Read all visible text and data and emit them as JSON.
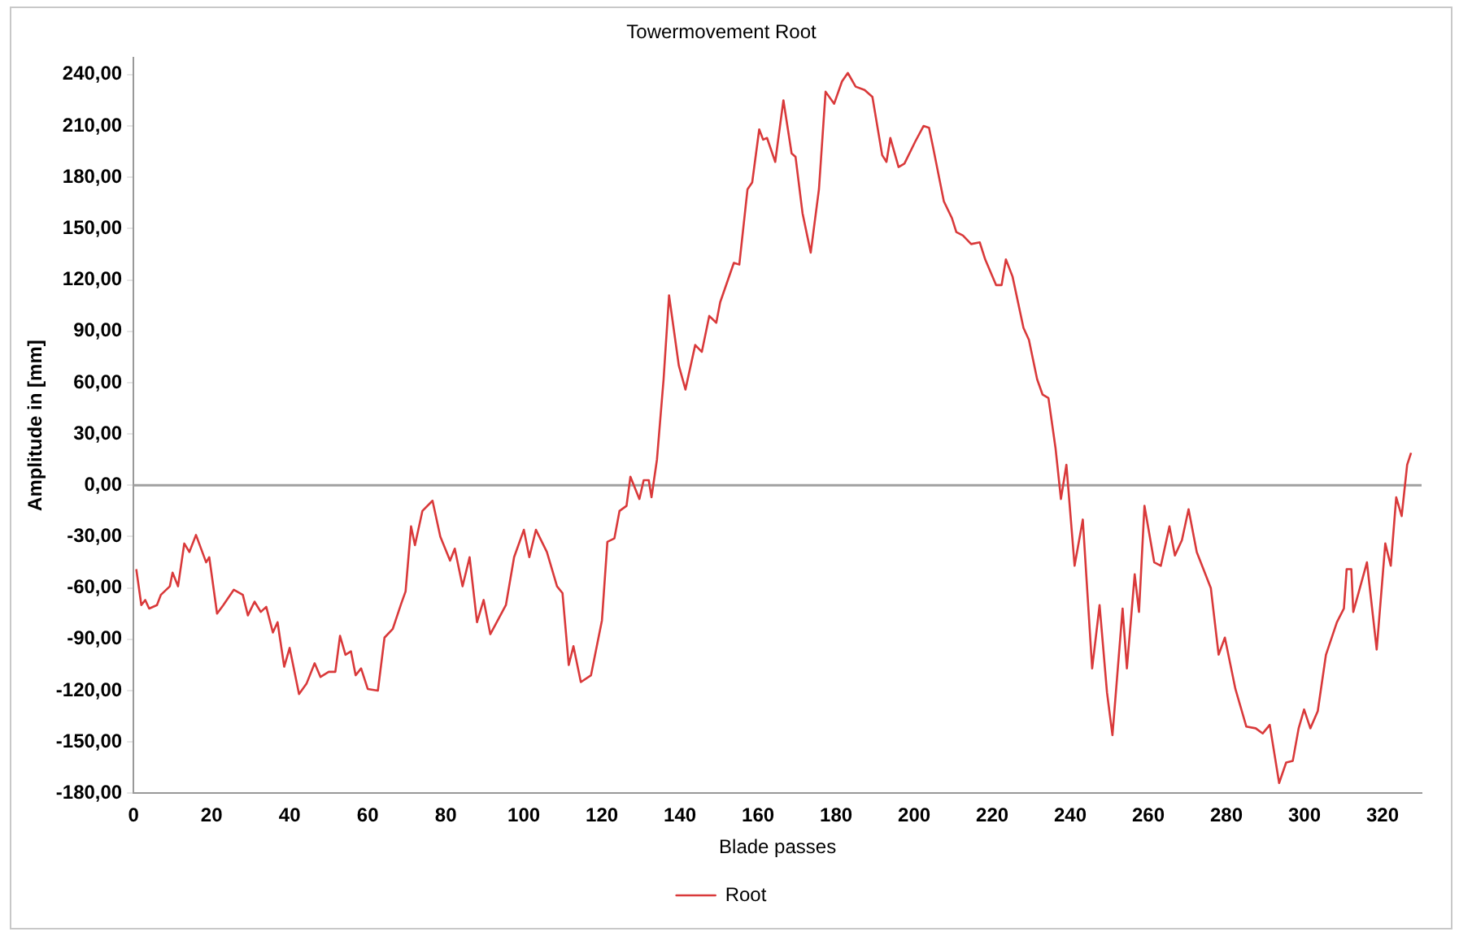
{
  "chart_data": {
    "type": "line",
    "title": "Towermovement Root",
    "xlabel": "Blade passes",
    "ylabel": "Amplitude in [mm]",
    "xlim": [
      0,
      330
    ],
    "xticks": [
      0,
      20,
      40,
      60,
      80,
      100,
      120,
      140,
      160,
      180,
      200,
      220,
      240,
      260,
      280,
      300,
      320
    ],
    "ylim": [
      -180,
      250
    ],
    "yticks": [
      {
        "value": -180,
        "label": "-180,00"
      },
      {
        "value": -150,
        "label": "-150,00"
      },
      {
        "value": -120,
        "label": "-120,00"
      },
      {
        "value": -90,
        "label": "-90,00"
      },
      {
        "value": -60,
        "label": "-60,00"
      },
      {
        "value": -30,
        "label": "-30,00"
      },
      {
        "value": 0,
        "label": "0,00"
      },
      {
        "value": 30,
        "label": "30,00"
      },
      {
        "value": 60,
        "label": "60,00"
      },
      {
        "value": 90,
        "label": "90,00"
      },
      {
        "value": 120,
        "label": "120,00"
      },
      {
        "value": 150,
        "label": "150,00"
      },
      {
        "value": 180,
        "label": "180,00"
      },
      {
        "value": 210,
        "label": "210,00"
      },
      {
        "value": 240,
        "label": "240,00"
      }
    ],
    "grid": false,
    "legend": "bottom",
    "marker": "none",
    "line_style": "solid",
    "ref_lines": [
      {
        "axis": "y",
        "value": 0,
        "color": "#a0a0a0"
      }
    ],
    "series": [
      {
        "name": "Root",
        "color": "#d9393a",
        "x": [
          0.7,
          2,
          3,
          4,
          6,
          7,
          9.3,
          10,
          11.4,
          13,
          14.3,
          16,
          18.6,
          19.4,
          21.4,
          23,
          25.7,
          28,
          29.3,
          31,
          32.6,
          34,
          35.7,
          36.9,
          38.6,
          40,
          42.4,
          44.3,
          46.4,
          47.9,
          50,
          51.7,
          52.9,
          54.3,
          55.7,
          56.9,
          58.3,
          60,
          62.6,
          64.3,
          66.4,
          68.6,
          69.7,
          71.1,
          72.1,
          74,
          76.6,
          78.6,
          81.1,
          82.3,
          84.3,
          86.1,
          88,
          89.7,
          91.4,
          95.4,
          97.5,
          100,
          101.4,
          103.1,
          105.9,
          108.5,
          109.9,
          111.5,
          112.7,
          114.6,
          117.2,
          120,
          121.4,
          123.2,
          124.5,
          126.3,
          127.3,
          129.6,
          130.7,
          132,
          132.7,
          134.1,
          135.8,
          137.2,
          139.7,
          141.4,
          143.9,
          145.6,
          147.5,
          149.3,
          150.3,
          153.8,
          155.2,
          157.3,
          158.5,
          160.3,
          161.3,
          162.3,
          164.4,
          166.5,
          168.6,
          169.6,
          171.4,
          173.5,
          175.6,
          177.3,
          179.5,
          181.5,
          183,
          185,
          187.3,
          189.3,
          191.8,
          192.9,
          193.9,
          196,
          197.5,
          200.3,
          202.4,
          203.8,
          204.8,
          207.6,
          209.7,
          210.8,
          212.5,
          214.6,
          216.8,
          218.2,
          221,
          222.4,
          223.5,
          225.2,
          228,
          229.4,
          231.5,
          232.9,
          234.4,
          236.2,
          237.6,
          239,
          241.1,
          243.2,
          245.6,
          247.5,
          249.4,
          250.8,
          253.4,
          254.5,
          256.5,
          257.6,
          259,
          261.5,
          263.2,
          265.4,
          266.8,
          268.6,
          270.3,
          272.4,
          276,
          278,
          279.6,
          282.3,
          285.1,
          287.5,
          289.3,
          291.1,
          293.5,
          295.3,
          297,
          298.5,
          299.9,
          301.5,
          303.4,
          305.5,
          308.3,
          310.1,
          310.8,
          312,
          312.5,
          316,
          318.5,
          320.7,
          322.1,
          323.5,
          324.9,
          326.3,
          327.3
        ],
        "values": [
          -49,
          -70,
          -67,
          -72,
          -70,
          -64,
          -59,
          -51,
          -59,
          -34,
          -39,
          -29,
          -45,
          -42,
          -75,
          -70,
          -61,
          -64,
          -76,
          -68,
          -74,
          -71,
          -86,
          -80,
          -106,
          -95,
          -122,
          -116,
          -104,
          -112,
          -109,
          -109,
          -88,
          -99,
          -97,
          -111,
          -107,
          -119,
          -120,
          -89,
          -84,
          -69,
          -62,
          -24,
          -35,
          -15,
          -9,
          -30,
          -44,
          -37,
          -59,
          -42,
          -80,
          -67,
          -87,
          -70,
          -42,
          -26,
          -42,
          -26,
          -39,
          -59,
          -63,
          -105,
          -94,
          -115,
          -111,
          -79,
          -33,
          -31,
          -15,
          -12,
          5,
          -8,
          3,
          3,
          -7,
          15,
          62,
          111,
          70,
          56,
          82,
          78,
          99,
          95,
          107,
          130,
          129,
          173,
          177,
          208,
          202,
          203,
          189,
          225,
          194,
          192,
          159,
          136,
          173,
          230,
          223,
          236,
          241,
          233,
          231,
          227,
          193,
          189,
          203,
          186,
          188,
          201,
          210,
          209,
          198,
          166,
          156,
          148,
          146,
          141,
          142,
          132,
          117,
          117,
          132,
          122,
          92,
          85,
          62,
          53,
          51,
          22,
          -8,
          12,
          -47,
          -20,
          -107,
          -70,
          -121,
          -146,
          -72,
          -107,
          -52,
          -74,
          -12,
          -45,
          -47,
          -24,
          -41,
          -32,
          -14,
          -39,
          -60,
          -99,
          -89,
          -119,
          -141,
          -142,
          -145,
          -140,
          -174,
          -162,
          -161,
          -142,
          -131,
          -142,
          -132,
          -99,
          -80,
          -72,
          -49,
          -49,
          -74,
          -45,
          -96,
          -34,
          -47,
          -7,
          -18,
          12,
          19
        ]
      }
    ]
  }
}
